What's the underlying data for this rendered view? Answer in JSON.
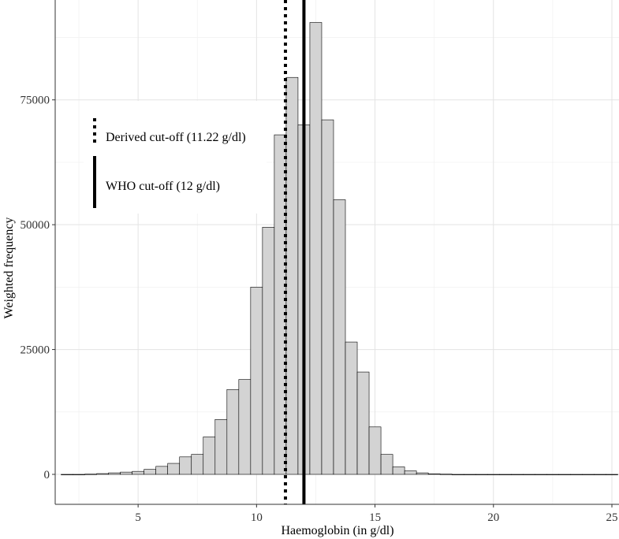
{
  "chart_data": {
    "type": "bar",
    "xlabel": "Haemoglobin (in g/dl)",
    "ylabel": "Weighted frequency",
    "xlim": [
      1.5,
      25.3
    ],
    "ylim": [
      -6000,
      95000
    ],
    "x_ticks": [
      5,
      10,
      15,
      20,
      25
    ],
    "y_ticks": [
      0,
      25000,
      50000,
      75000
    ],
    "x_tick_labels": [
      "5",
      "10",
      "15",
      "20",
      "25"
    ],
    "y_tick_labels": [
      "0",
      "25000",
      "50000",
      "75000"
    ],
    "bin_width": 0.5,
    "bin_centers": [
      2.0,
      2.5,
      3.0,
      3.5,
      4.0,
      4.5,
      5.0,
      5.5,
      6.0,
      6.5,
      7.0,
      7.5,
      8.0,
      8.5,
      9.0,
      9.5,
      10.0,
      10.5,
      11.0,
      11.5,
      12.0,
      12.5,
      13.0,
      13.5,
      14.0,
      14.5,
      15.0,
      15.5,
      16.0,
      16.5,
      17.0,
      17.5,
      18.0,
      18.5,
      19.0,
      19.5,
      20.0,
      20.5,
      21.0,
      21.5,
      22.0,
      22.5,
      23.0,
      23.5,
      24.0,
      24.5,
      25.0
    ],
    "values": [
      0,
      0,
      50,
      150,
      300,
      450,
      600,
      1000,
      1600,
      2200,
      3500,
      4000,
      7500,
      11000,
      17000,
      19000,
      37500,
      49500,
      68000,
      79500,
      70000,
      90500,
      71000,
      55000,
      26500,
      20500,
      9500,
      4000,
      1500,
      700,
      300,
      100,
      50,
      0,
      0,
      0,
      0,
      0,
      0,
      0,
      0,
      0,
      0,
      0,
      0,
      0,
      0
    ],
    "bar_fill": "#d3d3d3",
    "bar_stroke": "#000000",
    "grid": true,
    "reference_lines": [
      {
        "label": "Derived cut-off (11.22 g/dl)",
        "x": 11.22,
        "style": "dotted"
      },
      {
        "label": "WHO cut-off (12 g/dl)",
        "x": 12.0,
        "style": "solid"
      }
    ],
    "legend": {
      "position": "top-left inside",
      "entries": [
        "Derived cut-off (11.22 g/dl)",
        "WHO cut-off (12 g/dl)"
      ]
    }
  }
}
